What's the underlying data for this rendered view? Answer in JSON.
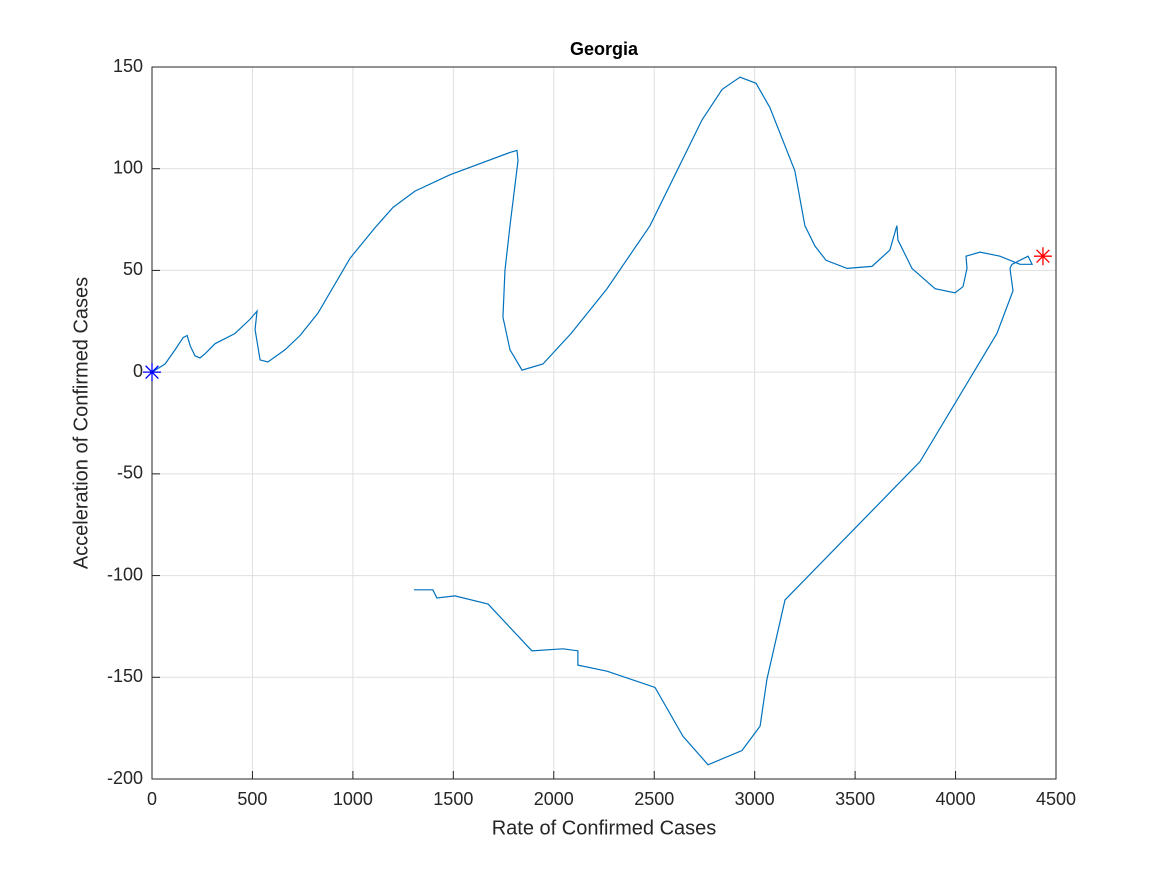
{
  "chart_data": {
    "type": "line",
    "title": "Georgia",
    "x_label": "Rate of Confirmed Cases",
    "y_label": "Acceleration of Confirmed Cases",
    "xlim": [
      0,
      4500
    ],
    "ylim": [
      -200,
      150
    ],
    "xticks": [
      0,
      500,
      1000,
      1500,
      2000,
      2500,
      3000,
      3500,
      4000,
      4500
    ],
    "yticks": [
      -200,
      -150,
      -100,
      -50,
      0,
      50,
      100,
      150
    ],
    "grid": true,
    "series": [
      {
        "color": "#0072bd",
        "x": [
          0,
          65,
          115,
          155,
          175,
          190,
          214,
          239,
          264,
          314,
          413,
          488,
          523,
          513,
          538,
          577,
          662,
          737,
          826,
          986,
          1110,
          1200,
          1309,
          1483,
          1782,
          1817,
          1822,
          1782,
          1757,
          1747,
          1782,
          1842,
          1946,
          2086,
          2265,
          2479,
          2738,
          2838,
          2927,
          3007,
          3076,
          3200,
          3250,
          3300,
          3355,
          3460,
          3584,
          3673,
          3708,
          3713,
          3783,
          3898,
          3997,
          4037,
          4057,
          4052,
          4122,
          4221,
          4321,
          4381,
          4361,
          4281,
          4271,
          4286,
          4206,
          3823,
          3151,
          3061,
          3027,
          2937,
          2768,
          2643,
          2504,
          2265,
          2120,
          2120,
          2046,
          1891,
          1673,
          1508,
          1418,
          1398,
          1304
        ],
        "values": [
          0,
          4,
          11,
          17,
          18,
          13,
          8,
          7,
          9,
          14,
          19,
          26,
          30,
          21,
          6,
          5,
          11,
          18,
          29,
          56,
          71,
          81,
          89,
          97,
          108,
          109,
          104,
          72,
          50,
          27,
          11,
          1,
          4,
          19,
          41,
          72,
          124,
          139,
          145,
          142,
          130,
          99,
          72,
          62,
          55,
          51,
          52,
          60,
          72,
          65,
          51,
          41,
          39,
          42,
          51,
          57,
          59,
          57,
          53,
          53,
          57,
          53,
          51,
          40,
          19,
          -44,
          -112,
          -151,
          -174,
          -186,
          -193,
          -179,
          -155,
          -147,
          -144,
          -137,
          -136,
          -137,
          -114,
          -110,
          -111,
          -107,
          -107
        ]
      }
    ],
    "markers": [
      {
        "x": 0,
        "y": 0,
        "color": "#0000ff"
      },
      {
        "x": 4435,
        "y": 57,
        "color": "#ff0000"
      }
    ]
  }
}
